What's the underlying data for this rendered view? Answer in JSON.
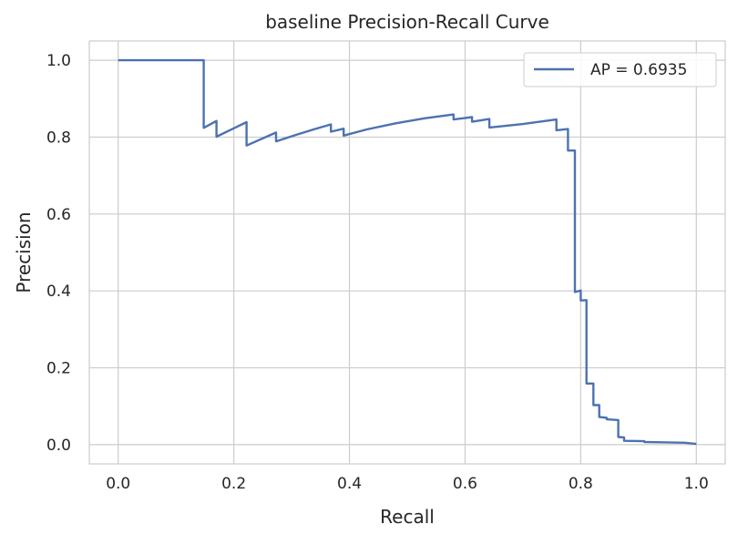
{
  "chart_data": {
    "type": "line",
    "title": "baseline Precision-Recall Curve",
    "xlabel": "Recall",
    "ylabel": "Precision",
    "xlim": [
      -0.05,
      1.05
    ],
    "ylim": [
      -0.05,
      1.05
    ],
    "x_ticks": [
      0.0,
      0.2,
      0.4,
      0.6,
      0.8,
      1.0
    ],
    "y_ticks": [
      0.0,
      0.2,
      0.4,
      0.6,
      0.8,
      1.0
    ],
    "x_tick_labels": [
      "0.0",
      "0.2",
      "0.4",
      "0.6",
      "0.8",
      "1.0"
    ],
    "y_tick_labels": [
      "0.0",
      "0.2",
      "0.4",
      "0.6",
      "0.8",
      "1.0"
    ],
    "grid": true,
    "legend_position": "top-right",
    "series": [
      {
        "name": "AP = 0.6935",
        "color": "#4c72b0",
        "step": true,
        "x": [
          0.0,
          0.148,
          0.148,
          0.17,
          0.17,
          0.222,
          0.222,
          0.273,
          0.273,
          0.308,
          0.34,
          0.368,
          0.368,
          0.39,
          0.39,
          0.43,
          0.48,
          0.53,
          0.58,
          0.58,
          0.612,
          0.612,
          0.642,
          0.642,
          0.7,
          0.758,
          0.758,
          0.778,
          0.778,
          0.79,
          0.79,
          0.8,
          0.8,
          0.81,
          0.81,
          0.822,
          0.822,
          0.832,
          0.832,
          0.845,
          0.845,
          0.865,
          0.865,
          0.875,
          0.875,
          0.91,
          0.91,
          0.95,
          0.98,
          1.0
        ],
        "y": [
          1.0,
          1.0,
          0.824,
          0.842,
          0.801,
          0.839,
          0.778,
          0.812,
          0.789,
          0.806,
          0.821,
          0.833,
          0.814,
          0.822,
          0.804,
          0.82,
          0.836,
          0.849,
          0.859,
          0.846,
          0.852,
          0.84,
          0.847,
          0.825,
          0.834,
          0.846,
          0.818,
          0.821,
          0.765,
          0.765,
          0.397,
          0.401,
          0.375,
          0.376,
          0.159,
          0.159,
          0.103,
          0.103,
          0.072,
          0.07,
          0.066,
          0.064,
          0.02,
          0.019,
          0.01,
          0.009,
          0.007,
          0.006,
          0.005,
          0.002
        ]
      }
    ]
  }
}
